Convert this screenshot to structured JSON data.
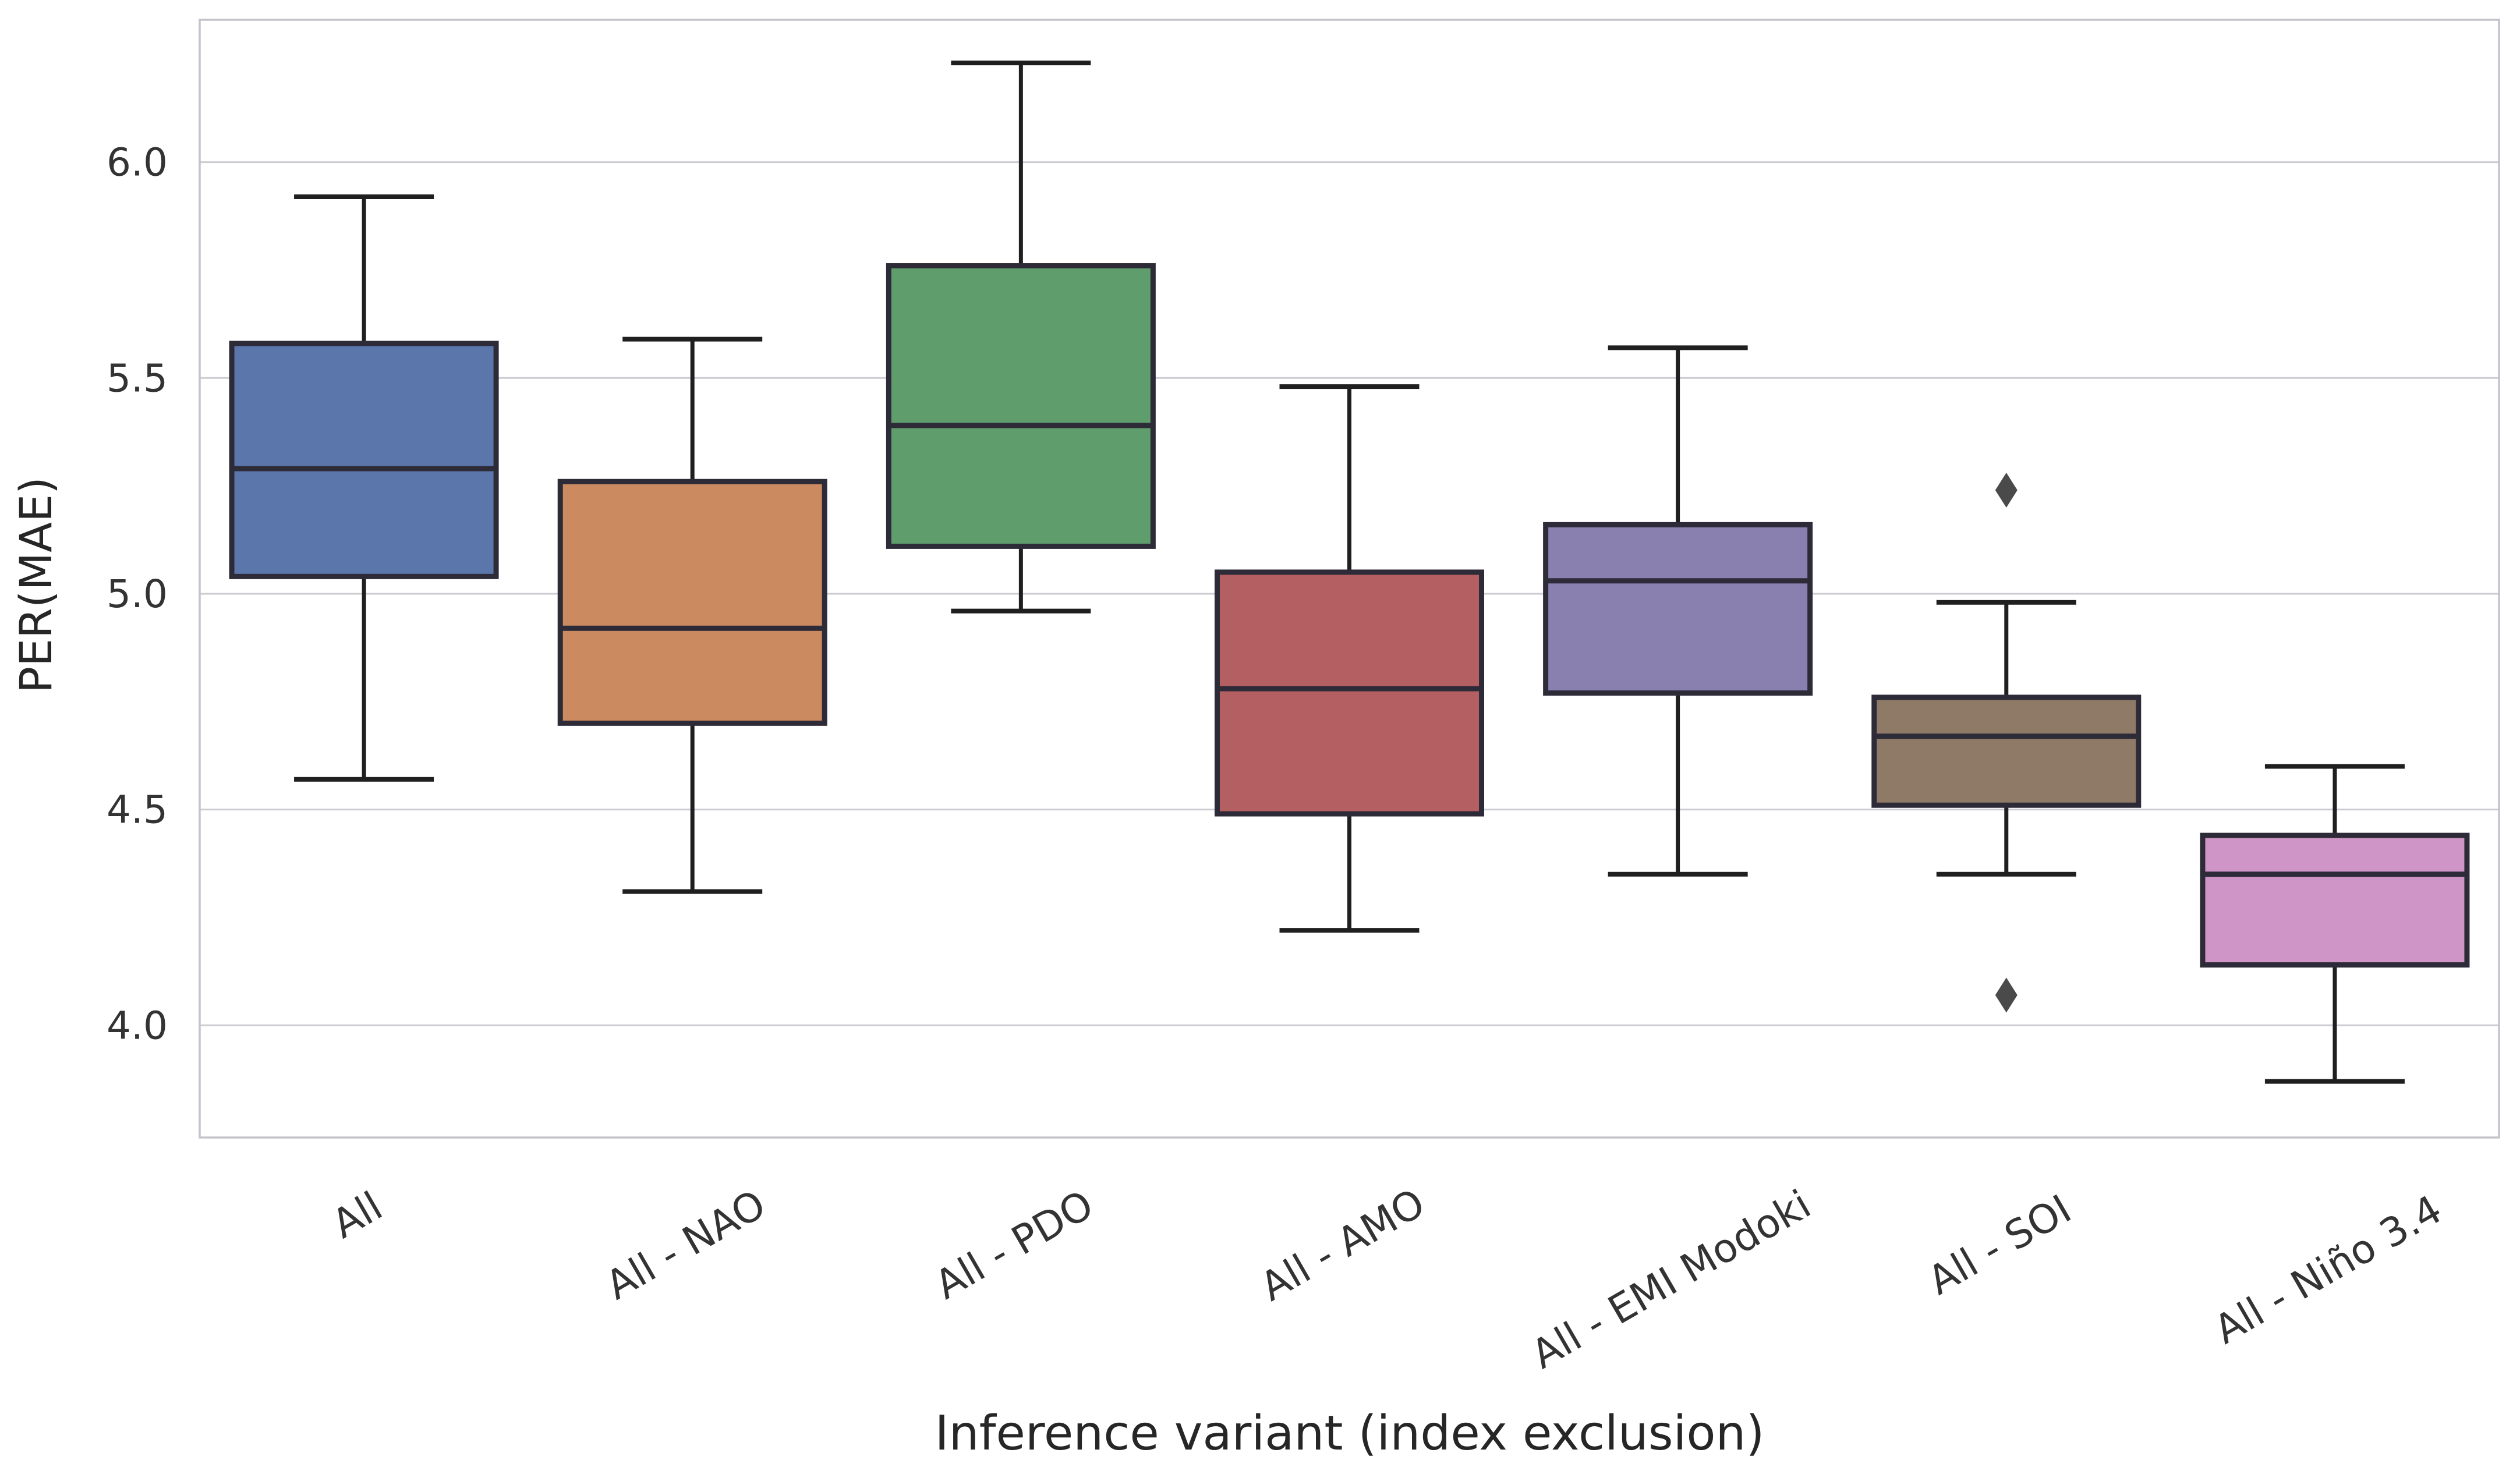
{
  "chart_data": {
    "type": "box",
    "title": "",
    "xlabel": "Inference variant (index exclusion)",
    "ylabel": "PER(MAE)",
    "ylim": [
      3.74,
      6.33
    ],
    "yticks": [
      4.0,
      4.5,
      5.0,
      5.5,
      6.0
    ],
    "grid": "horizontal gridlines on, light gray",
    "legend": "none",
    "categories": [
      "All",
      "All - NAO",
      "All - PDO",
      "All - AMO",
      "All - EMI Modoki",
      "All - SOI",
      "All - Niño 3.4"
    ],
    "series": [
      {
        "category": "All",
        "color": "#5A76AB",
        "whisker_low": 4.57,
        "q1": 5.04,
        "median": 5.29,
        "q3": 5.58,
        "whisker_high": 5.92,
        "outliers": []
      },
      {
        "category": "All - NAO",
        "color": "#CB8A60",
        "whisker_low": 4.31,
        "q1": 4.7,
        "median": 4.92,
        "q3": 5.26,
        "whisker_high": 5.59,
        "outliers": []
      },
      {
        "category": "All - PDO",
        "color": "#609D6D",
        "whisker_low": 4.96,
        "q1": 5.11,
        "median": 5.39,
        "q3": 5.76,
        "whisker_high": 6.23,
        "outliers": []
      },
      {
        "category": "All - AMO",
        "color": "#B45F62",
        "whisker_low": 4.22,
        "q1": 4.49,
        "median": 4.78,
        "q3": 5.05,
        "whisker_high": 5.48,
        "outliers": []
      },
      {
        "category": "All - EMI Modoki",
        "color": "#8A80B0",
        "whisker_low": 4.35,
        "q1": 4.77,
        "median": 5.03,
        "q3": 5.16,
        "whisker_high": 5.57,
        "outliers": []
      },
      {
        "category": "All - SOI",
        "color": "#8E7A66",
        "whisker_low": 4.35,
        "q1": 4.51,
        "median": 4.67,
        "q3": 4.76,
        "whisker_high": 4.98,
        "outliers": [
          5.24,
          4.07
        ]
      },
      {
        "category": "All - Niño 3.4",
        "color": "#D095C7",
        "whisker_low": 3.87,
        "q1": 4.14,
        "median": 4.35,
        "q3": 4.44,
        "whisker_high": 4.6,
        "outliers": []
      }
    ],
    "style": {
      "box_edge_color": "#2E2B38",
      "whisker_color": "#1F1F1F",
      "outlier_color": "#4A4A4A",
      "grid_color": "#CDCCD2",
      "spine_color": "#C4C3CB",
      "tick_label_color": "#333333",
      "axis_title_color": "#262626",
      "background": "#FFFFFF"
    }
  }
}
